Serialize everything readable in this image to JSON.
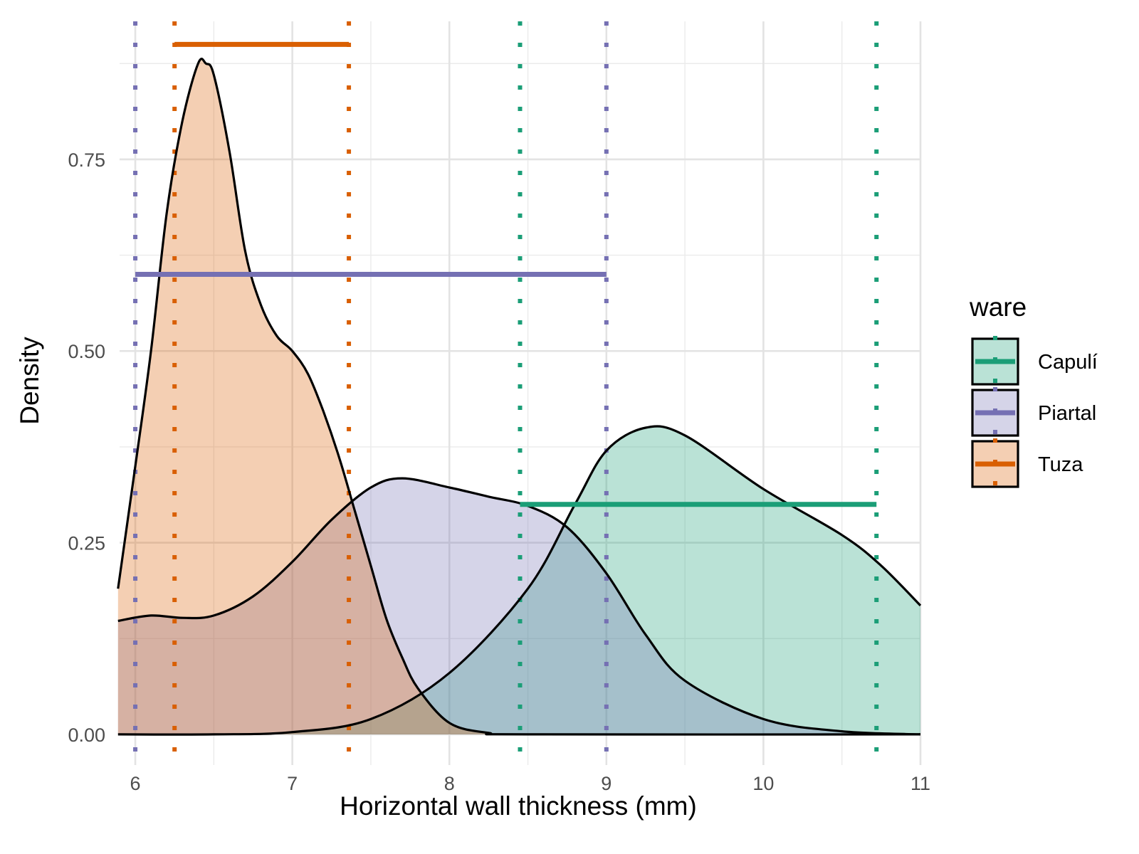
{
  "chart_data": {
    "type": "area",
    "xlabel": "Horizontal wall thickness (mm)",
    "ylabel": "Density",
    "xlim": [
      5.9,
      11.0
    ],
    "ylim": [
      -0.04,
      0.93
    ],
    "x_ticks": [
      6,
      7,
      8,
      9,
      10,
      11
    ],
    "x_tick_labels": [
      "6",
      "7",
      "8",
      "9",
      "10",
      "11"
    ],
    "y_ticks": [
      0,
      0.25,
      0.5,
      0.75
    ],
    "y_tick_labels": [
      "0.00",
      "0.25",
      "0.50",
      "0.75"
    ],
    "grid": true,
    "legend": {
      "title": "ware",
      "position": "right"
    },
    "series": [
      {
        "name": "Capulí",
        "color": "#1b9e77",
        "fill": "#bcdfd1",
        "density": [
          [
            5.89,
            0.0
          ],
          [
            6.5,
            0.0
          ],
          [
            7.0,
            0.003
          ],
          [
            7.5,
            0.02
          ],
          [
            8.0,
            0.08
          ],
          [
            8.5,
            0.19
          ],
          [
            8.8,
            0.3
          ],
          [
            9.0,
            0.37
          ],
          [
            9.25,
            0.4
          ],
          [
            9.5,
            0.39
          ],
          [
            10.0,
            0.32
          ],
          [
            10.5,
            0.26
          ],
          [
            10.75,
            0.22
          ],
          [
            11.0,
            0.168
          ]
        ],
        "range": [
          8.45,
          10.72
        ],
        "range_y": 0.3
      },
      {
        "name": "Piartal",
        "color": "#7570b3",
        "fill": "#d1cfe6",
        "density": [
          [
            5.89,
            0.148
          ],
          [
            6.1,
            0.155
          ],
          [
            6.3,
            0.152
          ],
          [
            6.5,
            0.155
          ],
          [
            6.75,
            0.18
          ],
          [
            7.0,
            0.225
          ],
          [
            7.25,
            0.28
          ],
          [
            7.5,
            0.322
          ],
          [
            7.7,
            0.334
          ],
          [
            8.0,
            0.322
          ],
          [
            8.25,
            0.31
          ],
          [
            8.5,
            0.298
          ],
          [
            8.75,
            0.27
          ],
          [
            9.0,
            0.21
          ],
          [
            9.25,
            0.13
          ],
          [
            9.5,
            0.07
          ],
          [
            10.0,
            0.02
          ],
          [
            10.5,
            0.004
          ],
          [
            11.0,
            0.0
          ]
        ],
        "range": [
          6.0,
          9.0
        ],
        "range_y": 0.6
      },
      {
        "name": "Tuza",
        "color": "#d95f02",
        "fill": "#f2c8b2",
        "density": [
          [
            5.89,
            0.19
          ],
          [
            6.0,
            0.35
          ],
          [
            6.1,
            0.5
          ],
          [
            6.2,
            0.68
          ],
          [
            6.3,
            0.8
          ],
          [
            6.4,
            0.875
          ],
          [
            6.45,
            0.875
          ],
          [
            6.5,
            0.86
          ],
          [
            6.6,
            0.76
          ],
          [
            6.7,
            0.63
          ],
          [
            6.8,
            0.56
          ],
          [
            6.9,
            0.52
          ],
          [
            7.0,
            0.5
          ],
          [
            7.1,
            0.47
          ],
          [
            7.2,
            0.42
          ],
          [
            7.3,
            0.36
          ],
          [
            7.4,
            0.29
          ],
          [
            7.5,
            0.22
          ],
          [
            7.6,
            0.15
          ],
          [
            7.7,
            0.1
          ],
          [
            7.8,
            0.06
          ],
          [
            8.0,
            0.015
          ],
          [
            8.25,
            0.002
          ],
          [
            8.5,
            0.0
          ],
          [
            11.0,
            0.0
          ]
        ],
        "range": [
          6.25,
          7.36
        ],
        "range_y": 0.9
      }
    ]
  }
}
